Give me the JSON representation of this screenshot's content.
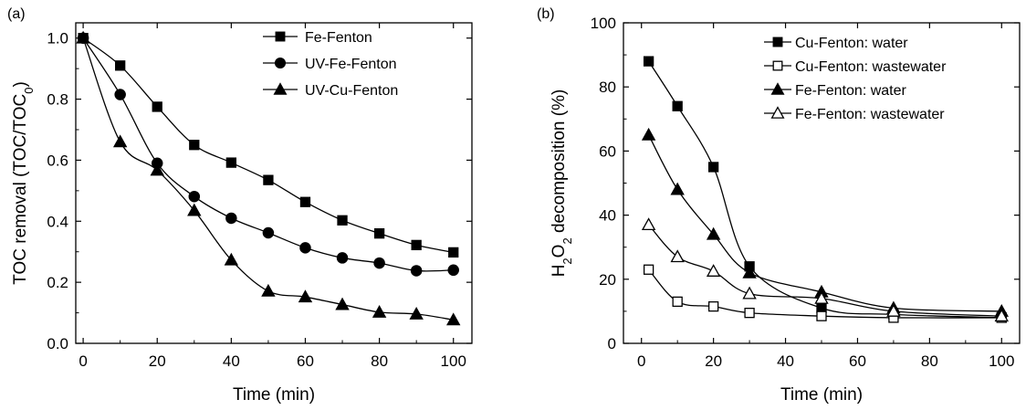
{
  "chart_data": [
    {
      "panel_label": "(a)",
      "type": "line",
      "xlabel": "Time (min)",
      "ylabel": "TOC removal (TOC/TOC",
      "ylabel_sub": "0",
      "ylabel_end": ")",
      "xlim": [
        -2,
        105
      ],
      "ylim": [
        0.0,
        1.05
      ],
      "xticks": [
        0,
        20,
        40,
        60,
        80,
        100
      ],
      "xtick_labels": [
        "0",
        "20",
        "40",
        "60",
        "80",
        "100"
      ],
      "yticks": [
        0.0,
        0.2,
        0.4,
        0.6,
        0.8,
        1.0
      ],
      "ytick_labels": [
        "0.0",
        "0.2",
        "0.4",
        "0.6",
        "0.8",
        "1.0"
      ],
      "grid": false,
      "legend_position": "top-right",
      "series": [
        {
          "name": "Fe-Fenton",
          "marker": "square",
          "filled": true,
          "x": [
            0,
            10,
            20,
            30,
            40,
            50,
            60,
            70,
            80,
            90,
            100
          ],
          "y": [
            1.0,
            0.91,
            0.775,
            0.65,
            0.592,
            0.535,
            0.463,
            0.403,
            0.36,
            0.322,
            0.298
          ]
        },
        {
          "name": "UV-Fe-Fenton",
          "marker": "circle",
          "filled": true,
          "x": [
            0,
            10,
            20,
            30,
            40,
            50,
            60,
            70,
            80,
            90,
            100
          ],
          "y": [
            1.0,
            0.815,
            0.59,
            0.481,
            0.41,
            0.362,
            0.313,
            0.28,
            0.263,
            0.238,
            0.24
          ]
        },
        {
          "name": "UV-Cu-Fenton",
          "marker": "triangle",
          "filled": true,
          "x": [
            0,
            10,
            20,
            30,
            40,
            50,
            60,
            70,
            80,
            90,
            100
          ],
          "y": [
            1.0,
            0.66,
            0.567,
            0.435,
            0.273,
            0.171,
            0.152,
            0.127,
            0.102,
            0.096,
            0.077
          ]
        }
      ]
    },
    {
      "panel_label": "(b)",
      "type": "line",
      "xlabel": "Time (min)",
      "ylabel_parts": [
        "H",
        "2",
        "O",
        "2",
        " decomposition (%)"
      ],
      "xlim": [
        -5,
        105
      ],
      "ylim": [
        0,
        100
      ],
      "xticks": [
        0,
        20,
        40,
        60,
        80,
        100
      ],
      "xtick_labels": [
        "0",
        "20",
        "40",
        "60",
        "80",
        "100"
      ],
      "yticks": [
        0,
        20,
        40,
        60,
        80,
        100
      ],
      "ytick_labels": [
        "0",
        "20",
        "40",
        "60",
        "80",
        "100"
      ],
      "grid": false,
      "legend_position": "top-right",
      "series": [
        {
          "name": "Cu-Fenton: water",
          "marker": "square",
          "filled": true,
          "x": [
            2,
            10,
            20,
            30,
            50,
            70,
            100
          ],
          "y": [
            88,
            74,
            55,
            24,
            11,
            9,
            8
          ]
        },
        {
          "name": "Cu-Fenton: wastewater",
          "marker": "square",
          "filled": false,
          "x": [
            2,
            10,
            20,
            30,
            50,
            70,
            100
          ],
          "y": [
            23,
            13,
            11.5,
            9.5,
            8.5,
            8,
            8
          ]
        },
        {
          "name": "Fe-Fenton: water",
          "marker": "triangle",
          "filled": true,
          "x": [
            2,
            10,
            20,
            30,
            50,
            70,
            100
          ],
          "y": [
            65,
            48,
            34,
            22,
            16,
            11,
            10
          ]
        },
        {
          "name": "Fe-Fenton: wastewater",
          "marker": "triangle",
          "filled": false,
          "x": [
            2,
            10,
            20,
            30,
            50,
            70,
            100
          ],
          "y": [
            37,
            27,
            22.5,
            15.5,
            14,
            10,
            8.5
          ]
        }
      ]
    }
  ]
}
